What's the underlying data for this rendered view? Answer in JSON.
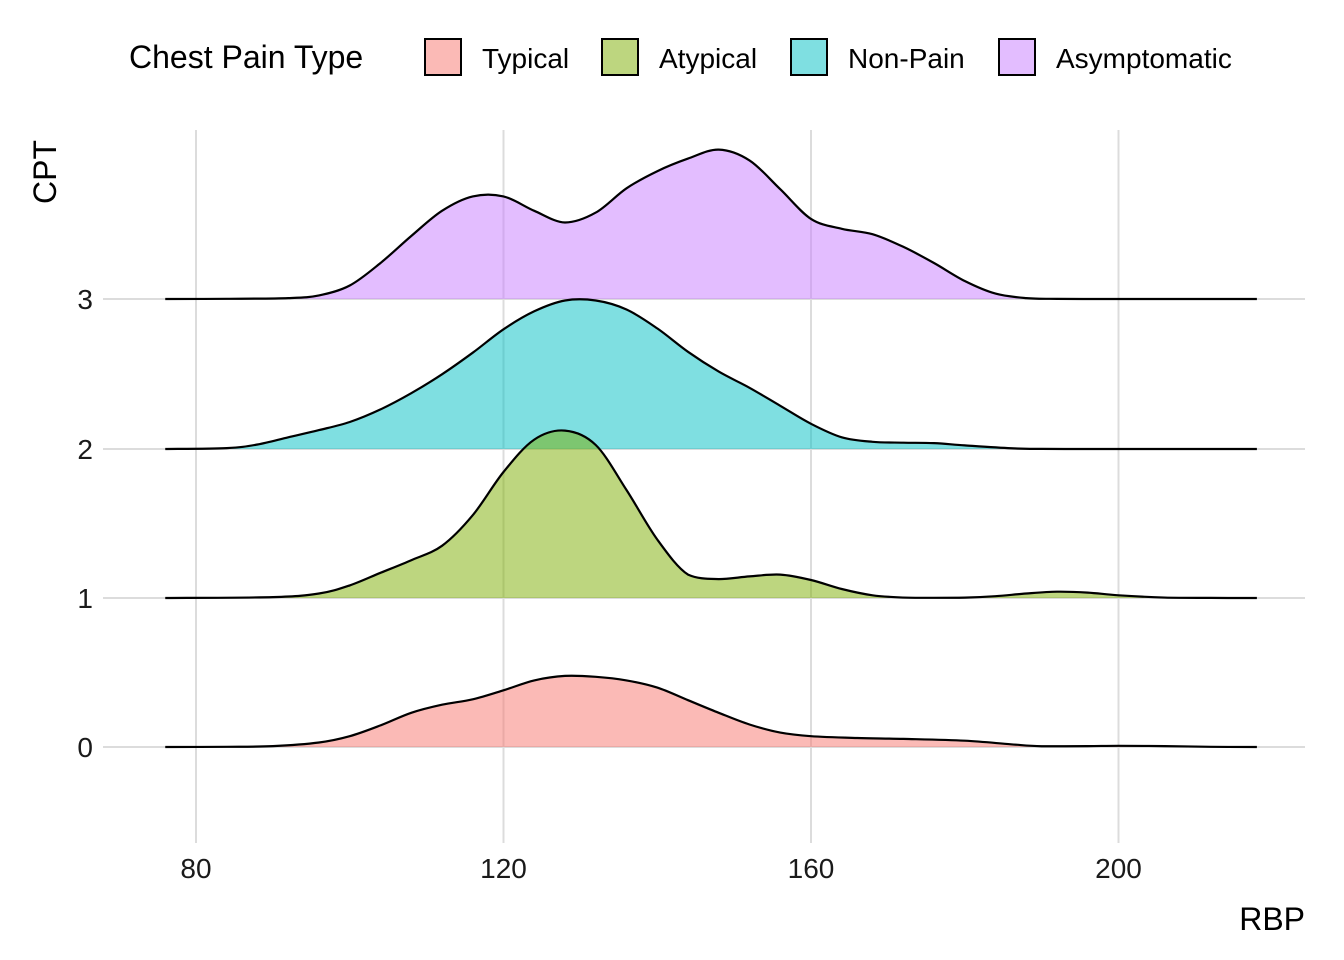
{
  "chart_data": {
    "type": "ridgeline",
    "xlabel": "RBP",
    "ylabel": "CPT",
    "x_ticks": [
      80,
      120,
      160,
      200
    ],
    "xlim": [
      76,
      218
    ],
    "y_categories": [
      "0",
      "1",
      "2",
      "3"
    ],
    "legend": {
      "title": "Chest Pain Type",
      "position": "top",
      "entries": [
        {
          "label": "Typical",
          "category": "0",
          "color": "#F8766D"
        },
        {
          "label": "Atypical",
          "category": "1",
          "color": "#7CAE00"
        },
        {
          "label": "Non-Pain",
          "category": "2",
          "color": "#00BFC4"
        },
        {
          "label": "Asymptomatic",
          "category": "3",
          "color": "#C77CFF"
        }
      ]
    },
    "grid": true,
    "series": [
      {
        "name": "Typical",
        "category": "0",
        "color": "#F8766D",
        "x": [
          76,
          84,
          90,
          96,
          100,
          104,
          108,
          112,
          116,
          120,
          124,
          128,
          132,
          136,
          140,
          144,
          148,
          152,
          156,
          160,
          166,
          172,
          180,
          186,
          190,
          196,
          200,
          206,
          212,
          218
        ],
        "density": [
          0,
          0.002,
          0.01,
          0.05,
          0.12,
          0.24,
          0.38,
          0.47,
          0.53,
          0.63,
          0.74,
          0.79,
          0.78,
          0.74,
          0.66,
          0.52,
          0.38,
          0.25,
          0.16,
          0.12,
          0.1,
          0.09,
          0.07,
          0.03,
          0.008,
          0.01,
          0.013,
          0.01,
          0.002,
          0
        ]
      },
      {
        "name": "Atypical",
        "category": "1",
        "color": "#7CAE00",
        "x": [
          76,
          90,
          96,
          100,
          104,
          108,
          112,
          116,
          120,
          124,
          128,
          132,
          136,
          140,
          144,
          148,
          152,
          156,
          160,
          164,
          168,
          172,
          176,
          180,
          184,
          188,
          192,
          196,
          200,
          206,
          212,
          218
        ],
        "density": [
          0,
          0.01,
          0.05,
          0.14,
          0.28,
          0.42,
          0.58,
          0.92,
          1.4,
          1.76,
          1.86,
          1.7,
          1.2,
          0.65,
          0.26,
          0.21,
          0.24,
          0.26,
          0.2,
          0.1,
          0.03,
          0.005,
          0.002,
          0.004,
          0.02,
          0.05,
          0.07,
          0.06,
          0.03,
          0.005,
          0.001,
          0
        ]
      },
      {
        "name": "Non-Pain",
        "category": "2",
        "color": "#00BFC4",
        "x": [
          76,
          84,
          88,
          92,
          96,
          100,
          104,
          108,
          112,
          116,
          120,
          124,
          128,
          132,
          136,
          140,
          144,
          148,
          152,
          156,
          160,
          164,
          168,
          172,
          176,
          180,
          186,
          190,
          196,
          200,
          206,
          212,
          218
        ],
        "density": [
          0,
          0.01,
          0.05,
          0.13,
          0.21,
          0.3,
          0.44,
          0.62,
          0.83,
          1.07,
          1.33,
          1.53,
          1.65,
          1.65,
          1.55,
          1.34,
          1.08,
          0.86,
          0.68,
          0.48,
          0.28,
          0.13,
          0.08,
          0.07,
          0.065,
          0.04,
          0.008,
          0.001,
          0,
          0,
          0,
          0,
          0
        ]
      },
      {
        "name": "Asymptomatic",
        "category": "3",
        "color": "#C77CFF",
        "x": [
          76,
          84,
          92,
          96,
          100,
          104,
          108,
          112,
          116,
          120,
          124,
          128,
          132,
          136,
          140,
          144,
          148,
          152,
          156,
          160,
          164,
          168,
          172,
          176,
          180,
          184,
          188,
          192,
          196,
          200,
          206,
          212,
          218
        ],
        "density": [
          0,
          0.002,
          0.01,
          0.04,
          0.15,
          0.4,
          0.7,
          0.98,
          1.14,
          1.14,
          0.98,
          0.85,
          0.96,
          1.23,
          1.42,
          1.56,
          1.66,
          1.54,
          1.22,
          0.89,
          0.78,
          0.72,
          0.58,
          0.4,
          0.2,
          0.06,
          0.01,
          0.001,
          0,
          0,
          0,
          0,
          0
        ]
      }
    ]
  }
}
